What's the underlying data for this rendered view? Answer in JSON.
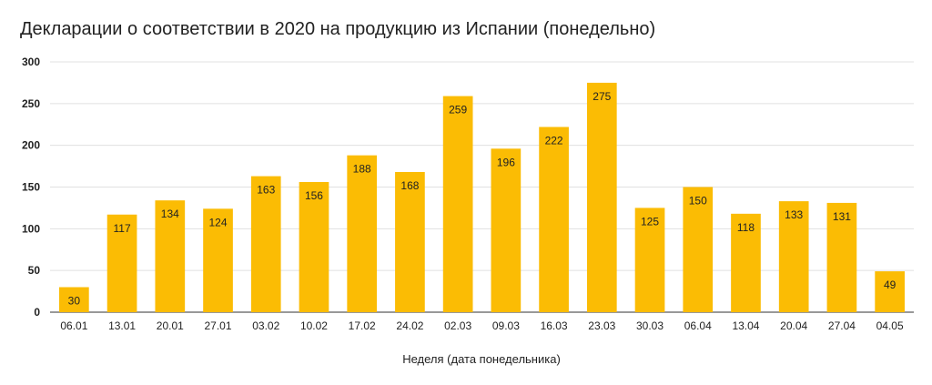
{
  "chart_data": {
    "type": "bar",
    "title": "Декларации о соответствии в 2020 на продукцию из Испании (понедельно)",
    "xlabel": "Неделя (дата понедельника)",
    "ylabel": "",
    "categories": [
      "06.01",
      "13.01",
      "20.01",
      "27.01",
      "03.02",
      "10.02",
      "17.02",
      "24.02",
      "02.03",
      "09.03",
      "16.03",
      "23.03",
      "30.03",
      "06.04",
      "13.04",
      "20.04",
      "27.04",
      "04.05"
    ],
    "values": [
      30,
      117,
      134,
      124,
      163,
      156,
      188,
      168,
      259,
      196,
      222,
      275,
      125,
      150,
      118,
      133,
      131,
      49
    ],
    "ylim": [
      0,
      300
    ],
    "yticks": [
      0,
      50,
      100,
      150,
      200,
      250,
      300
    ],
    "grid": true,
    "legend": "none",
    "bar_color": "#fbbc04",
    "grid_color": "#e0e0e0",
    "data_labels": true
  }
}
